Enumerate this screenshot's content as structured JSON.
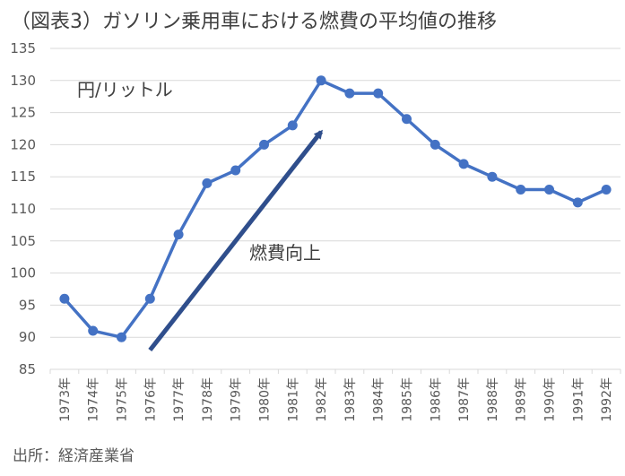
{
  "chart_data": {
    "type": "line",
    "title": "（図表3）ガソリン乗用車における燃費の平均値の推移",
    "ylabel": "円/リットル",
    "xlabel": "",
    "source": "出所：経済産業省",
    "categories": [
      "1973年",
      "1974年",
      "1975年",
      "1976年",
      "1977年",
      "1978年",
      "1979年",
      "1980年",
      "1981年",
      "1982年",
      "1983年",
      "1984年",
      "1985年",
      "1986年",
      "1987年",
      "1988年",
      "1989年",
      "1990年",
      "1991年",
      "1992年"
    ],
    "series": [
      {
        "name": "燃費",
        "values": [
          96,
          91,
          90,
          96,
          106,
          114,
          116,
          120,
          123,
          130,
          128,
          128,
          124,
          120,
          117,
          115,
          113,
          113,
          111,
          113
        ]
      }
    ],
    "ylim": [
      85,
      135
    ],
    "yticks": [
      85,
      90,
      95,
      100,
      105,
      110,
      115,
      120,
      125,
      130,
      135
    ],
    "grid": true,
    "annotations": [
      {
        "text": "燃費向上",
        "arrow_from": [
          "1976年",
          88
        ],
        "arrow_to": [
          "1982年",
          122
        ]
      }
    ],
    "colors": {
      "line": "#4472C4",
      "arrow": "#2F4E8C",
      "grid": "#D9D9D9"
    }
  }
}
